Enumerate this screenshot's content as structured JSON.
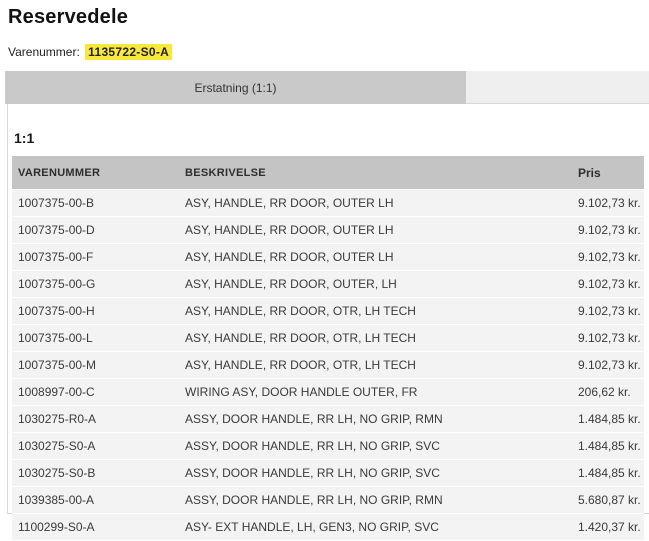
{
  "header": {
    "title": "Reservedele",
    "varenummer_label": "Varenummer:",
    "varenummer_value": "1135722-S0-A"
  },
  "tabs": {
    "active_label": "Erstatning (1:1)"
  },
  "content": {
    "section_heading": "1:1"
  },
  "table": {
    "columns": [
      "VARENUMMER",
      "BESKRIVELSE",
      "Pris"
    ],
    "rows": [
      [
        "1007375-00-B",
        "ASY, HANDLE, RR DOOR, OUTER LH",
        "9.102,73 kr."
      ],
      [
        "1007375-00-D",
        "ASY, HANDLE, RR DOOR, OUTER LH",
        "9.102,73 kr."
      ],
      [
        "1007375-00-F",
        "ASY, HANDLE, RR DOOR, OUTER LH",
        "9.102,73 kr."
      ],
      [
        "1007375-00-G",
        "ASY, HANDLE, RR DOOR, OUTER, LH",
        "9.102,73 kr."
      ],
      [
        "1007375-00-H",
        "ASY, HANDLE, RR DOOR, OTR, LH TECH",
        "9.102,73 kr."
      ],
      [
        "1007375-00-L",
        "ASY, HANDLE, RR DOOR, OTR, LH TECH",
        "9.102,73 kr."
      ],
      [
        "1007375-00-M",
        "ASY, HANDLE, RR DOOR, OTR, LH TECH",
        "9.102,73 kr."
      ],
      [
        "1008997-00-C",
        "WIRING ASY, DOOR HANDLE OUTER, FR",
        "206,62 kr."
      ],
      [
        "1030275-R0-A",
        "ASSY, DOOR HANDLE, RR LH, NO GRIP, RMN",
        "1.484,85 kr."
      ],
      [
        "1030275-S0-A",
        "ASSY, DOOR HANDLE, RR LH, NO GRIP, SVC",
        "1.484,85 kr."
      ],
      [
        "1030275-S0-B",
        "ASSY, DOOR HANDLE, RR LH, NO GRIP, SVC",
        "1.484,85 kr."
      ],
      [
        "1039385-00-A",
        "ASSY, DOOR HANDLE, RR LH, NO GRIP, RMN",
        "5.680,87 kr."
      ],
      [
        "1100299-S0-A",
        "ASY- EXT HANDLE, LH, GEN3, NO GRIP, SVC",
        "1.420,37 kr."
      ]
    ]
  },
  "colors": {
    "highlight_yellow": "#f7e83b",
    "active_tab_gray": "#c9c9c9",
    "inactive_strip_gray": "#efefef",
    "table_header_gray": "#c4c4c4",
    "row_gray": "#f3f3f3"
  }
}
